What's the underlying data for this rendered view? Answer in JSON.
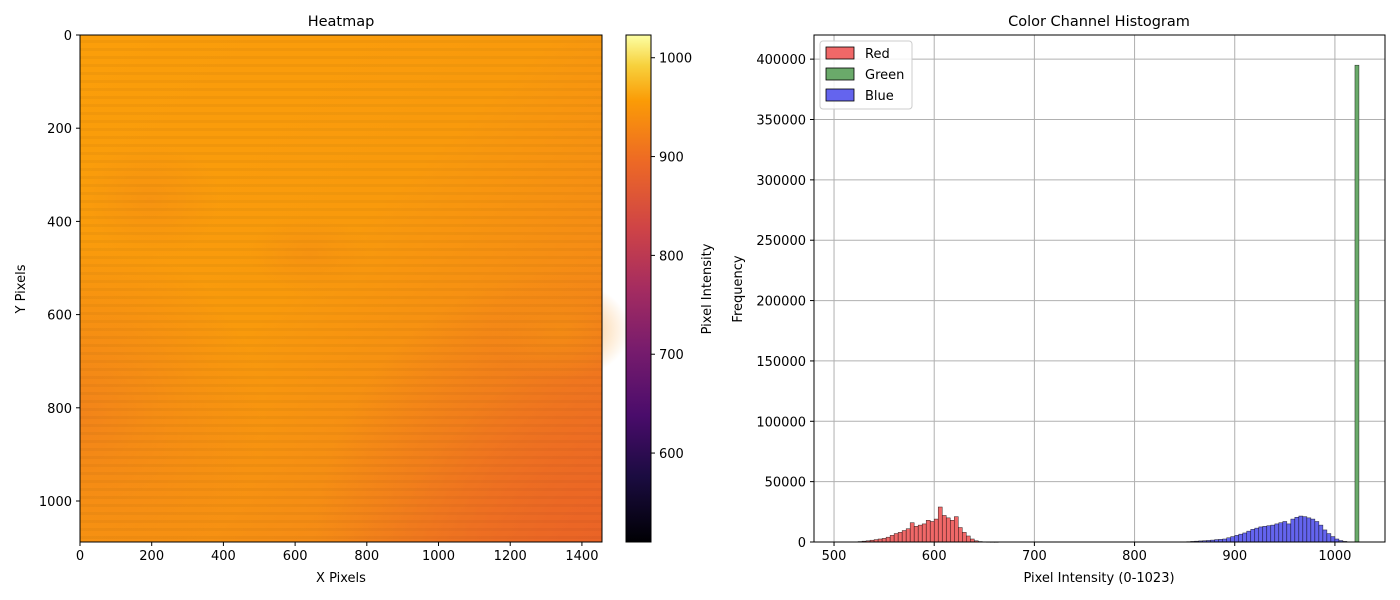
{
  "colors": {
    "red": "#f06868",
    "green": "#6aaa6a",
    "blue": "#6464ee",
    "edge": "#000000",
    "grid": "#b0b0b0"
  },
  "chart_data": [
    {
      "type": "heatmap",
      "title": "Heatmap",
      "xlabel": "X Pixels",
      "ylabel": "Y Pixels",
      "xlim": [
        0,
        1456
      ],
      "ylim": [
        1088,
        0
      ],
      "xticks": [
        0,
        200,
        400,
        600,
        800,
        1000,
        1200,
        1400
      ],
      "yticks": [
        0,
        200,
        400,
        600,
        800,
        1000
      ],
      "colormap": "inferno",
      "colorbar": {
        "label": "Pixel Intensity",
        "range": [
          510,
          1023
        ],
        "ticks": [
          600,
          700,
          800,
          900,
          1000
        ]
      },
      "approx_value_range": [
        870,
        915
      ],
      "grid": false
    },
    {
      "type": "bar",
      "title": "Color Channel Histogram",
      "xlabel": "Pixel Intensity (0-1023)",
      "ylabel": "Frequency",
      "xlim": [
        480,
        1050
      ],
      "ylim": [
        0,
        420000
      ],
      "xticks": [
        500,
        600,
        700,
        800,
        900,
        1000
      ],
      "yticks": [
        0,
        50000,
        100000,
        150000,
        200000,
        250000,
        300000,
        350000,
        400000
      ],
      "grid": true,
      "legend_position": "top-left",
      "bin_width": 4,
      "series": [
        {
          "name": "Red",
          "bin_start": 520,
          "values": [
            200,
            400,
            700,
            1000,
            1500,
            2000,
            2500,
            3000,
            4000,
            5500,
            7000,
            8000,
            9500,
            11000,
            16000,
            13000,
            14000,
            15000,
            18000,
            17000,
            19000,
            29000,
            22000,
            20000,
            18000,
            21000,
            12000,
            8000,
            5000,
            2500,
            1000,
            400,
            150,
            80,
            40,
            20
          ]
        },
        {
          "name": "Green",
          "bin_start": 1020,
          "values": [
            395000
          ]
        },
        {
          "name": "Blue",
          "bin_start": 852,
          "values": [
            300,
            500,
            700,
            900,
            1100,
            1300,
            1600,
            2000,
            2200,
            2500,
            3500,
            4500,
            5500,
            6500,
            7500,
            9000,
            10500,
            11500,
            12500,
            13000,
            13500,
            14000,
            15000,
            16000,
            17000,
            15000,
            19000,
            20500,
            21500,
            21000,
            20000,
            19000,
            17000,
            14000,
            10000,
            7000,
            4500,
            2500,
            1200,
            500,
            150
          ]
        }
      ]
    }
  ]
}
